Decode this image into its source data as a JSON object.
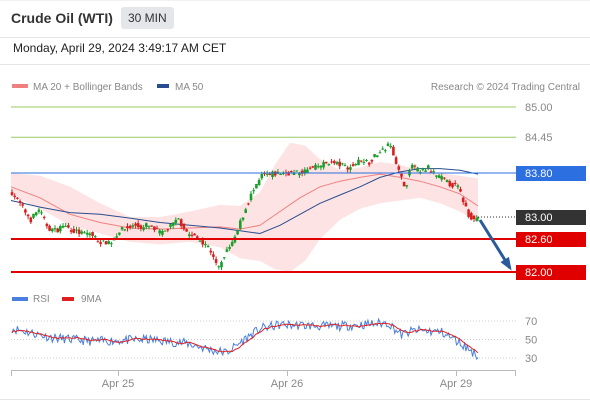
{
  "header": {
    "title": "Crude Oil (WTI)",
    "timeframe": "30 MIN",
    "datetime": "Monday, April 29, 2024 3:49:17 AM CET"
  },
  "legend": {
    "ma20": "MA 20 + Bollinger Bands",
    "ma50": "MA 50",
    "rsi": "RSI",
    "ma9": "9MA",
    "credit": "Research © 2024 Trading Central"
  },
  "chart_data": [
    {
      "type": "candlestick",
      "x_ticks": [
        "Apr 25",
        "Apr 26",
        "Apr 29"
      ],
      "ylim": [
        82.0,
        85.0
      ],
      "levels": [
        {
          "value": 85.0,
          "label": "85.00",
          "kind": "line",
          "color": "#99cc66"
        },
        {
          "value": 84.45,
          "label": "84.45",
          "kind": "line",
          "color": "#99cc66"
        },
        {
          "value": 83.8,
          "label": "83.80",
          "kind": "resistance",
          "color": "#2b6fe0"
        },
        {
          "value": 83.0,
          "label": "83.00",
          "kind": "last",
          "color": "#333333"
        },
        {
          "value": 82.6,
          "label": "82.60",
          "kind": "support",
          "color": "#e00000"
        },
        {
          "value": 82.0,
          "label": "82.00",
          "kind": "support",
          "color": "#e00000"
        }
      ],
      "series": [
        {
          "name": "MA 20 + Bollinger Bands",
          "color": "#f08080"
        },
        {
          "name": "MA 50",
          "color": "#2a4d8f"
        }
      ],
      "forecast": {
        "from": 83.0,
        "to": 82.0,
        "color": "#2a5a9a"
      },
      "colors": {
        "up": "#1a9e2a",
        "down": "#d62020",
        "band_fill": "#fde0e0"
      },
      "grid": false
    },
    {
      "type": "line",
      "title": "RSI",
      "yticks": [
        70,
        50,
        30
      ],
      "ylim": [
        24,
        76
      ],
      "series": [
        {
          "name": "RSI",
          "color": "#4a7fe0"
        },
        {
          "name": "9MA",
          "color": "#e02020"
        }
      ]
    }
  ]
}
